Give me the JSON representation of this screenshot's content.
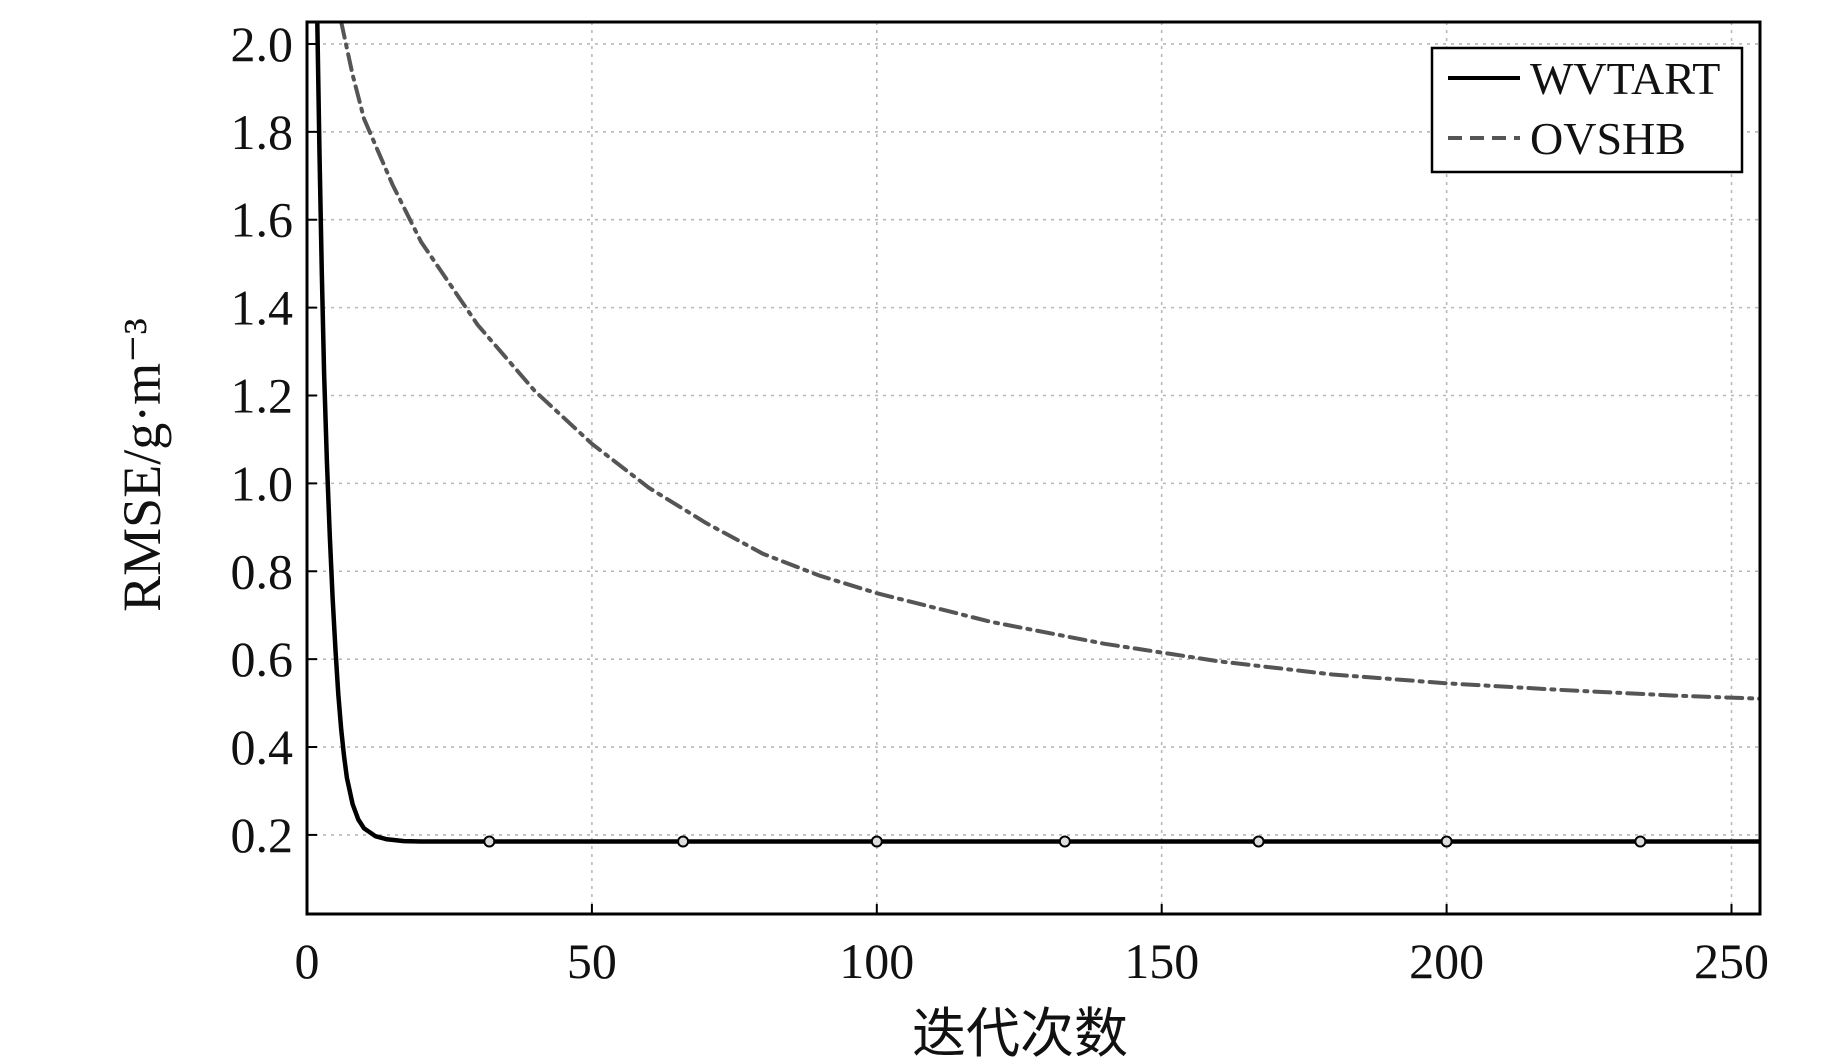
{
  "chart_data": {
    "type": "line",
    "title": "",
    "xlabel": "迭代次数",
    "ylabel": "RMSE/g·m⁻³",
    "xlim": [
      0,
      255
    ],
    "ylim": [
      0.02,
      2.05
    ],
    "xticks": [
      0,
      50,
      100,
      150,
      200,
      250
    ],
    "yticks": [
      0.2,
      0.4,
      0.6,
      0.8,
      1.0,
      1.2,
      1.4,
      1.6,
      1.8,
      2.0
    ],
    "xtick_labels": [
      "0",
      "50",
      "100",
      "150",
      "200",
      "250"
    ],
    "ytick_labels": [
      "0.2",
      "0.4",
      "0.6",
      "0.8",
      "1.0",
      "1.2",
      "1.4",
      "1.6",
      "1.8",
      "2.0"
    ],
    "grid": true,
    "legend_position": "top-right",
    "series": [
      {
        "name": "WVTART",
        "color": "#000000",
        "line_style": "solid",
        "x": [
          1.8,
          2.2,
          2.6,
          3.0,
          3.5,
          4.0,
          4.5,
          5.0,
          5.5,
          6.0,
          6.5,
          7.0,
          8.0,
          9.0,
          10.0,
          12.0,
          14.0,
          17.0,
          20.0,
          30.0,
          50.0,
          100.0,
          150.0,
          200.0,
          255.0
        ],
        "y": [
          2.05,
          1.75,
          1.48,
          1.25,
          1.05,
          0.88,
          0.74,
          0.62,
          0.52,
          0.44,
          0.38,
          0.33,
          0.27,
          0.235,
          0.215,
          0.197,
          0.19,
          0.186,
          0.185,
          0.185,
          0.185,
          0.185,
          0.185,
          0.185,
          0.185
        ],
        "markers_x": [
          32,
          66,
          100,
          133,
          167,
          200,
          234
        ]
      },
      {
        "name": "OVSHB",
        "color": "#555555",
        "line_style": "dashdot",
        "x": [
          6.0,
          8.0,
          10.0,
          15.0,
          20.0,
          30.0,
          40.0,
          50.0,
          60.0,
          70.0,
          80.0,
          90.0,
          100.0,
          120.0,
          140.0,
          160.0,
          180.0,
          200.0,
          220.0,
          240.0,
          255.0
        ],
        "y": [
          2.05,
          1.93,
          1.83,
          1.68,
          1.55,
          1.36,
          1.21,
          1.09,
          0.99,
          0.91,
          0.84,
          0.79,
          0.75,
          0.685,
          0.635,
          0.595,
          0.565,
          0.545,
          0.53,
          0.517,
          0.51
        ]
      }
    ]
  }
}
